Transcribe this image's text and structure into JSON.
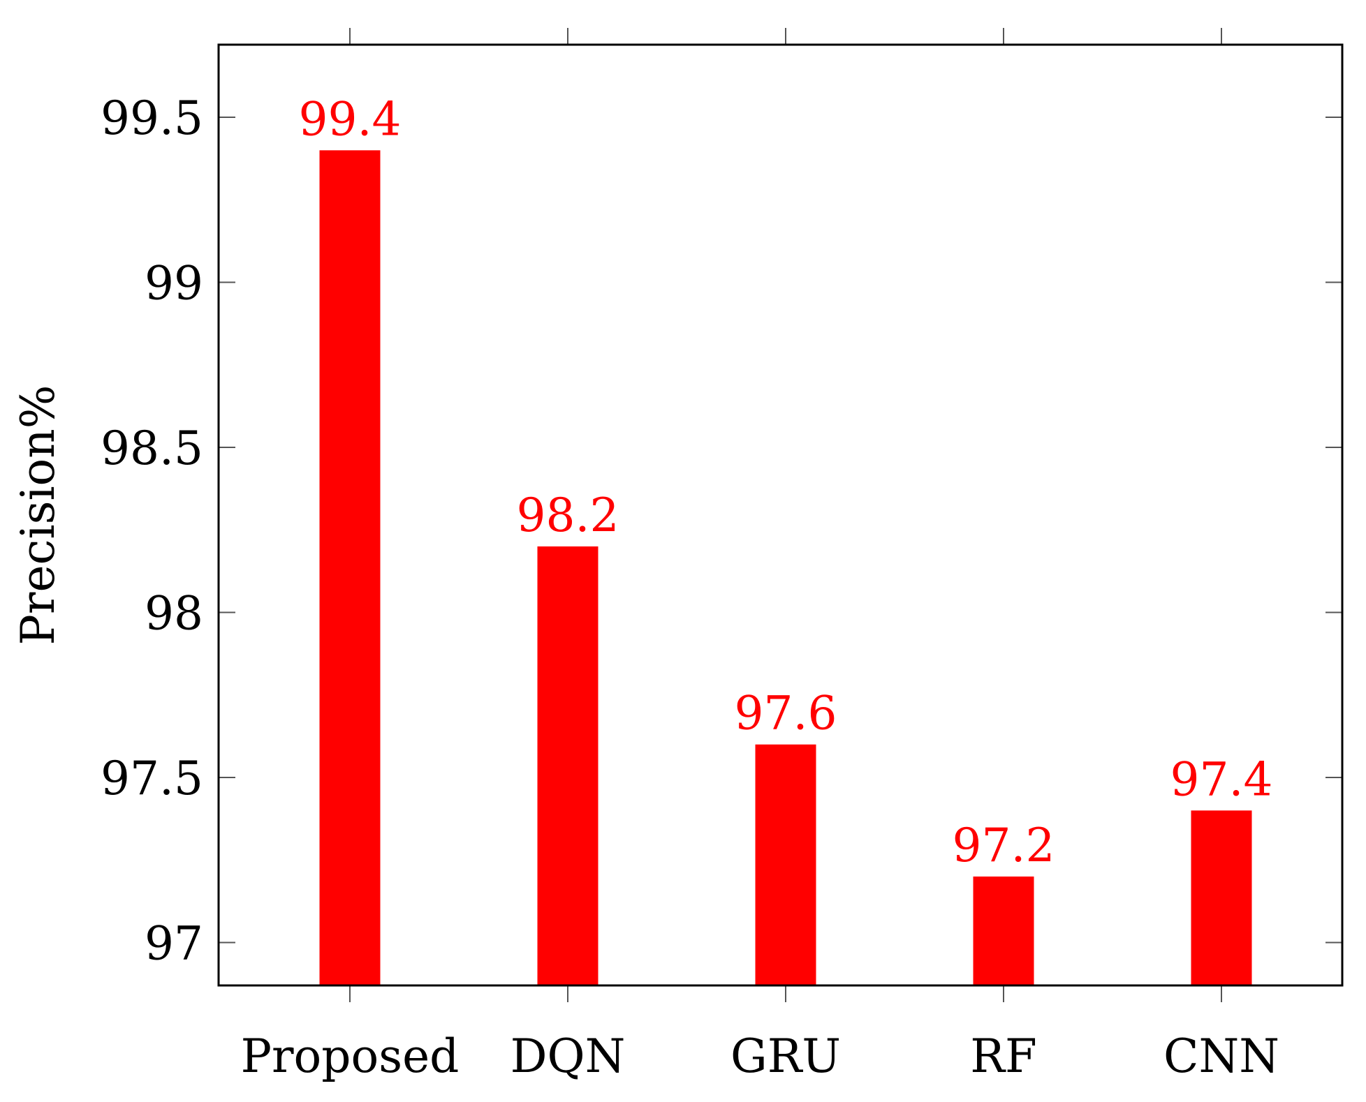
{
  "chart_data": {
    "type": "bar",
    "categories": [
      "Proposed",
      "DQN",
      "GRU",
      "RF",
      "CNN"
    ],
    "values": [
      99.4,
      98.2,
      97.6,
      97.2,
      97.4
    ],
    "data_labels": [
      "99.4",
      "98.2",
      "97.6",
      "97.2",
      "97.4"
    ],
    "title": "",
    "xlabel": "",
    "ylabel": "Precision%",
    "ylim": [
      96.87,
      99.72
    ],
    "yticks": [
      97,
      97.5,
      98,
      98.5,
      99,
      99.5
    ],
    "ytick_labels": [
      "97",
      "97.5",
      "98",
      "98.5",
      "99",
      "99.5"
    ],
    "grid": false,
    "bar_color": "#ff0000",
    "label_color": "#ff0000"
  }
}
